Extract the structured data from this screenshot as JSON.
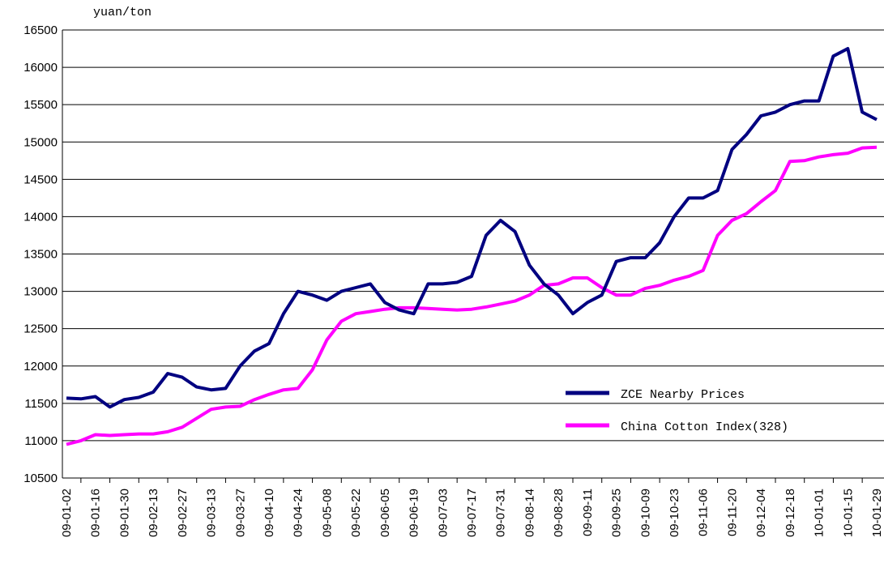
{
  "chart_data": {
    "type": "line",
    "y_unit": "yuan/ton",
    "categories": [
      "09-01-02",
      null,
      "09-01-16",
      null,
      "09-01-30",
      null,
      "09-02-13",
      null,
      "09-02-27",
      null,
      "09-03-13",
      null,
      "09-03-27",
      null,
      "09-04-10",
      null,
      "09-04-24",
      null,
      "09-05-08",
      null,
      "09-05-22",
      null,
      "09-06-05",
      null,
      "09-06-19",
      null,
      "09-07-03",
      null,
      "09-07-17",
      null,
      "09-07-31",
      null,
      "09-08-14",
      null,
      "09-08-28",
      null,
      "09-09-11",
      null,
      "09-09-25",
      null,
      "09-10-09",
      null,
      "09-10-23",
      null,
      "09-11-06",
      null,
      "09-11-20",
      null,
      "09-12-04",
      null,
      "09-12-18",
      null,
      "10-01-01",
      null,
      "10-01-15",
      null,
      "10-01-29"
    ],
    "series": [
      {
        "name": "ZCE Nearby Prices",
        "color": "#000080",
        "values": [
          11570,
          11560,
          11590,
          11450,
          11550,
          11580,
          11650,
          11900,
          11850,
          11720,
          11680,
          11700,
          12000,
          12200,
          12300,
          12700,
          13000,
          12950,
          12880,
          13000,
          13050,
          13100,
          12850,
          12750,
          12700,
          13100,
          13100,
          13120,
          13200,
          13750,
          13950,
          13800,
          13350,
          13100,
          12950,
          12700,
          12850,
          12950,
          13400,
          13450,
          13450,
          13650,
          14000,
          14250,
          14250,
          14350,
          14900,
          15100,
          15350,
          15400,
          15500,
          15550,
          15550,
          16150,
          16250,
          15400,
          15300
        ]
      },
      {
        "name": "China Cotton Index(328)",
        "color": "#ff00ff",
        "values": [
          10950,
          11000,
          11080,
          11070,
          11080,
          11090,
          11090,
          11120,
          11180,
          11300,
          11420,
          11450,
          11460,
          11550,
          11620,
          11680,
          11700,
          11950,
          12350,
          12600,
          12700,
          12730,
          12760,
          12780,
          12780,
          12770,
          12760,
          12750,
          12760,
          12790,
          12830,
          12870,
          12950,
          13080,
          13100,
          13180,
          13180,
          13050,
          12950,
          12950,
          13040,
          13080,
          13150,
          13200,
          13280,
          13750,
          13950,
          14040,
          14200,
          14350,
          14740,
          14750,
          14800,
          14830,
          14850,
          14920,
          14930
        ]
      }
    ],
    "ylim": [
      10500,
      16500
    ],
    "yticks": [
      10500,
      11000,
      11500,
      12000,
      12500,
      13000,
      13500,
      14000,
      14500,
      15000,
      15500,
      16000,
      16500
    ],
    "grid": true
  }
}
